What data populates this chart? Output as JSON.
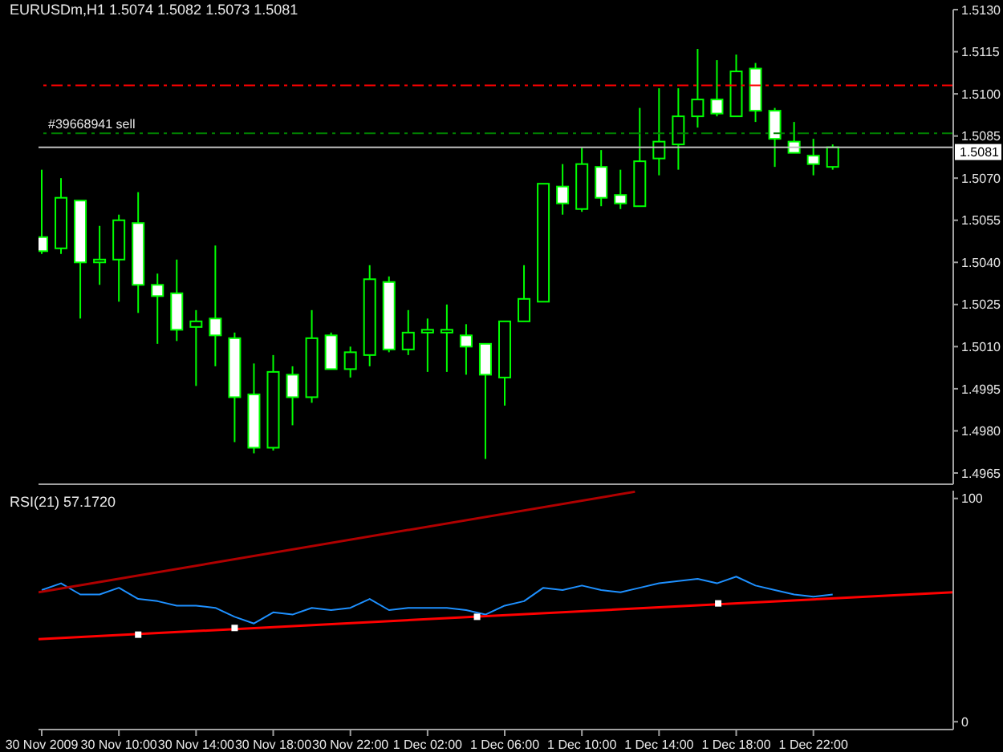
{
  "chart_data": [
    {
      "type": "candlestick",
      "title": "EURUSDm,H1 1.5074 1.5082 1.5073 1.5081",
      "x": [
        "2009-11-30T06:00",
        "2009-11-30T07:00",
        "2009-11-30T08:00",
        "2009-11-30T09:00",
        "2009-11-30T10:00",
        "2009-11-30T11:00",
        "2009-11-30T12:00",
        "2009-11-30T13:00",
        "2009-11-30T14:00",
        "2009-11-30T15:00",
        "2009-11-30T16:00",
        "2009-11-30T17:00",
        "2009-11-30T18:00",
        "2009-11-30T19:00",
        "2009-11-30T20:00",
        "2009-11-30T21:00",
        "2009-11-30T22:00",
        "2009-11-30T23:00",
        "2009-12-01T00:00",
        "2009-12-01T01:00",
        "2009-12-01T02:00",
        "2009-12-01T03:00",
        "2009-12-01T04:00",
        "2009-12-01T05:00",
        "2009-12-01T06:00",
        "2009-12-01T07:00",
        "2009-12-01T08:00",
        "2009-12-01T09:00",
        "2009-12-01T10:00",
        "2009-12-01T11:00",
        "2009-12-01T12:00",
        "2009-12-01T13:00",
        "2009-12-01T14:00",
        "2009-12-01T15:00",
        "2009-12-01T16:00",
        "2009-12-01T17:00",
        "2009-12-01T18:00",
        "2009-12-01T19:00",
        "2009-12-01T20:00",
        "2009-12-01T21:00",
        "2009-12-01T22:00",
        "2009-12-01T23:00"
      ],
      "ohlc": [
        [
          1.5049,
          1.5073,
          1.5043,
          1.5044
        ],
        [
          1.5045,
          1.507,
          1.5043,
          1.5063
        ],
        [
          1.5062,
          1.5062,
          1.502,
          1.504
        ],
        [
          1.504,
          1.5053,
          1.5032,
          1.5041
        ],
        [
          1.5041,
          1.5057,
          1.5026,
          1.5055
        ],
        [
          1.5054,
          1.5065,
          1.5022,
          1.5032
        ],
        [
          1.5032,
          1.5036,
          1.5011,
          1.5028
        ],
        [
          1.5029,
          1.5041,
          1.5012,
          1.5016
        ],
        [
          1.5017,
          1.5023,
          1.4996,
          1.5019
        ],
        [
          1.502,
          1.5046,
          1.5003,
          1.5014
        ],
        [
          1.5013,
          1.5015,
          1.4976,
          1.4992
        ],
        [
          1.4993,
          1.5004,
          1.4972,
          1.4974
        ],
        [
          1.4974,
          1.5007,
          1.4973,
          1.5001
        ],
        [
          1.5,
          1.5003,
          1.4982,
          1.4992
        ],
        [
          1.4992,
          1.5023,
          1.499,
          1.5013
        ],
        [
          1.5014,
          1.5015,
          1.5002,
          1.5002
        ],
        [
          1.5002,
          1.501,
          1.4999,
          1.5008
        ],
        [
          1.5007,
          1.5039,
          1.5003,
          1.5034
        ],
        [
          1.5033,
          1.5035,
          1.5008,
          1.5009
        ],
        [
          1.5009,
          1.5023,
          1.5007,
          1.5015
        ],
        [
          1.5015,
          1.502,
          1.5001,
          1.5016
        ],
        [
          1.5015,
          1.5025,
          1.5001,
          1.5016
        ],
        [
          1.5014,
          1.5018,
          1.5,
          1.501
        ],
        [
          1.5011,
          1.5011,
          1.497,
          1.5
        ],
        [
          1.4999,
          1.5019,
          1.4989,
          1.5019
        ],
        [
          1.5019,
          1.5039,
          1.5019,
          1.5027
        ],
        [
          1.5026,
          1.5068,
          1.5026,
          1.5068
        ],
        [
          1.5067,
          1.5075,
          1.5057,
          1.5061
        ],
        [
          1.5059,
          1.5081,
          1.5058,
          1.5075
        ],
        [
          1.5074,
          1.508,
          1.506,
          1.5063
        ],
        [
          1.5064,
          1.5073,
          1.5059,
          1.5061
        ],
        [
          1.506,
          1.5095,
          1.506,
          1.5076
        ],
        [
          1.5077,
          1.5102,
          1.5071,
          1.5083
        ],
        [
          1.5082,
          1.5102,
          1.5073,
          1.5092
        ],
        [
          1.5092,
          1.5116,
          1.5088,
          1.5098
        ],
        [
          1.5098,
          1.5112,
          1.5092,
          1.5093
        ],
        [
          1.5092,
          1.5114,
          1.5092,
          1.5108
        ],
        [
          1.5109,
          1.5111,
          1.509,
          1.5094
        ],
        [
          1.5094,
          1.5095,
          1.5074,
          1.5084
        ],
        [
          1.5083,
          1.509,
          1.5079,
          1.5079
        ],
        [
          1.5078,
          1.5084,
          1.5071,
          1.5075
        ],
        [
          1.5074,
          1.5082,
          1.5073,
          1.5081
        ]
      ],
      "color": "#00ff00",
      "colors": [
        "#ffffff",
        "#000000",
        "#ffffff",
        "#000000",
        "#000000",
        "#ffffff",
        "#ffffff",
        "#ffffff",
        "#000000",
        "#ffffff",
        "#ffffff",
        "#ffffff",
        "#000000",
        "#ffffff",
        "#000000",
        "#ffffff",
        "#000000",
        "#000000",
        "#ffffff",
        "#000000",
        "#000000",
        "#000000",
        "#ffffff",
        "#ffffff",
        "#000000",
        "#000000",
        "#000000",
        "#ffffff",
        "#000000",
        "#ffffff",
        "#ffffff",
        "#000000",
        "#000000",
        "#000000",
        "#000000",
        "#ffffff",
        "#000000",
        "#ffffff",
        "#ffffff",
        "#ffffff",
        "#ffffff",
        "#000000"
      ],
      "xlim": [
        "2009-11-30T05:50",
        "2009-12-02T05:15"
      ],
      "ylim": [
        1.4961,
        1.513
      ],
      "yticks": [
        {
          "value": 1.513,
          "label": "1.5130"
        },
        1.5115,
        {
          "value": 1.51,
          "label": "1.5100"
        },
        1.5085,
        {
          "value": 1.507,
          "label": "1.5070"
        },
        1.5055,
        {
          "value": 1.504,
          "label": "1.5040"
        },
        1.5025,
        {
          "value": 1.501,
          "label": "1.5010"
        },
        1.4995,
        {
          "value": 1.498,
          "label": "1.4980"
        },
        1.4965
      ],
      "tick_labels": "y",
      "ref_lines": [
        {
          "axis": "y",
          "value": 1.5103,
          "color": "#ff0000",
          "line_style": "dashed"
        },
        {
          "axis": "y",
          "value": 1.5086,
          "label": "#39668941 sell",
          "color": "#008000",
          "line_style": "dashed"
        },
        {
          "axis": "y",
          "value": 1.5081,
          "label": "1.5081",
          "color": "#c0c0c0",
          "line_style": "solid"
        }
      ]
    },
    {
      "type": "line",
      "title": "RSI(21) 57.1720",
      "x": [
        "2009-11-30T06:00",
        "2009-11-30T07:00",
        "2009-11-30T08:00",
        "2009-11-30T09:00",
        "2009-11-30T10:00",
        "2009-11-30T11:00",
        "2009-11-30T12:00",
        "2009-11-30T13:00",
        "2009-11-30T14:00",
        "2009-11-30T15:00",
        "2009-11-30T16:00",
        "2009-11-30T17:00",
        "2009-11-30T18:00",
        "2009-11-30T19:00",
        "2009-11-30T20:00",
        "2009-11-30T21:00",
        "2009-11-30T22:00",
        "2009-11-30T23:00",
        "2009-12-01T00:00",
        "2009-12-01T01:00",
        "2009-12-01T02:00",
        "2009-12-01T03:00",
        "2009-12-01T04:00",
        "2009-12-01T05:00",
        "2009-12-01T06:00",
        "2009-12-01T07:00",
        "2009-12-01T08:00",
        "2009-12-01T09:00",
        "2009-12-01T10:00",
        "2009-12-01T11:00",
        "2009-12-01T12:00",
        "2009-12-01T13:00",
        "2009-12-01T14:00",
        "2009-12-01T15:00",
        "2009-12-01T16:00",
        "2009-12-01T17:00",
        "2009-12-01T18:00",
        "2009-12-01T19:00",
        "2009-12-01T20:00",
        "2009-12-01T21:00",
        "2009-12-01T22:00",
        "2009-12-01T23:00"
      ],
      "series": [
        {
          "color": "#1e90ff",
          "values": [
            59,
            62,
            57,
            57,
            60,
            55,
            54,
            52,
            52,
            51,
            47,
            44,
            49,
            48,
            51,
            50,
            51,
            55,
            50,
            51,
            51,
            51,
            50,
            48,
            52,
            54,
            60,
            59,
            61,
            59,
            58,
            60,
            62,
            63,
            64,
            62,
            65,
            61,
            59,
            57,
            56,
            57
          ]
        },
        {
          "type": "line",
          "color": "#b00000",
          "x": [
            "2009-11-30T05:50",
            "2009-12-01T12:45"
          ],
          "values": [
            58,
            103
          ]
        },
        {
          "type": "line",
          "color": "#ff0000",
          "x": [
            "2009-11-30T05:50",
            "2009-12-02T05:15"
          ],
          "values": [
            37,
            58
          ]
        },
        {
          "type": "scatter",
          "color": "#ffffff",
          "marker": "square",
          "x": [
            "2009-11-30T11:00",
            "2009-11-30T16:00",
            "2009-12-01T04:34",
            "2009-12-01T17:04"
          ],
          "values": [
            39,
            42,
            47,
            53
          ]
        }
      ],
      "xlim": [
        "2009-11-30T05:50",
        "2009-12-02T05:15"
      ],
      "xticks": [
        {
          "value": "2009-11-30T06:00",
          "label": "30 Nov 2009"
        },
        {
          "value": "2009-11-30T10:00",
          "label": "30 Nov 10:00"
        },
        {
          "value": "2009-11-30T14:00",
          "label": "30 Nov 14:00"
        },
        {
          "value": "2009-11-30T18:00",
          "label": "30 Nov 18:00"
        },
        {
          "value": "2009-11-30T22:00",
          "label": "30 Nov 22:00"
        },
        {
          "value": "2009-12-01T02:00",
          "label": "1 Dec 02:00"
        },
        {
          "value": "2009-12-01T06:00",
          "label": "1 Dec 06:00"
        },
        {
          "value": "2009-12-01T10:00",
          "label": "1 Dec 10:00"
        },
        {
          "value": "2009-12-01T14:00",
          "label": "1 Dec 14:00"
        },
        {
          "value": "2009-12-01T18:00",
          "label": "1 Dec 18:00"
        },
        {
          "value": "2009-12-01T22:00",
          "label": "1 Dec 22:00"
        }
      ],
      "ylim": [
        -3.5,
        103.5
      ],
      "yticks": [
        0,
        100
      ]
    }
  ]
}
